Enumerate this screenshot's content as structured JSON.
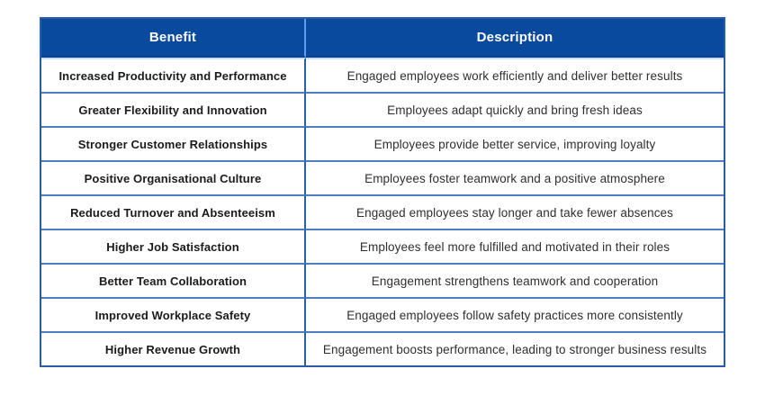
{
  "table": {
    "headers": [
      "Benefit",
      "Description"
    ],
    "rows": [
      {
        "benefit": "Increased Productivity and Performance",
        "description": "Engaged employees work efficiently and deliver better results"
      },
      {
        "benefit": "Greater Flexibility and Innovation",
        "description": "Employees adapt quickly and bring fresh ideas"
      },
      {
        "benefit": "Stronger Customer Relationships",
        "description": "Employees provide better service, improving loyalty"
      },
      {
        "benefit": "Positive Organisational Culture",
        "description": "Employees foster teamwork and a positive atmosphere"
      },
      {
        "benefit": "Reduced Turnover and Absenteeism",
        "description": "Engaged employees stay longer and take fewer absences"
      },
      {
        "benefit": "Higher Job Satisfaction",
        "description": "Employees feel more fulfilled and motivated in their roles"
      },
      {
        "benefit": "Better Team Collaboration",
        "description": "Engagement strengthens teamwork and cooperation"
      },
      {
        "benefit": "Improved Workplace Safety",
        "description": "Engaged employees follow safety practices more consistently"
      },
      {
        "benefit": "Higher Revenue Growth",
        "description": "Engagement boosts performance, leading to stronger business results"
      }
    ]
  },
  "colors": {
    "header_bg": "#0a4a9e",
    "header_text": "#ffffff",
    "outer_border": "#2a5ba8",
    "row_divider": "#4a80c2",
    "row_divider_light": "#c6ddf8",
    "header_divider": "#5b9df0",
    "header_underline": "#0d3f8a",
    "column_divider": "#2d5e9e",
    "benefit_text": "#1b1b1b",
    "description_text": "#2f2f2f",
    "page_bg": "#ffffff"
  }
}
